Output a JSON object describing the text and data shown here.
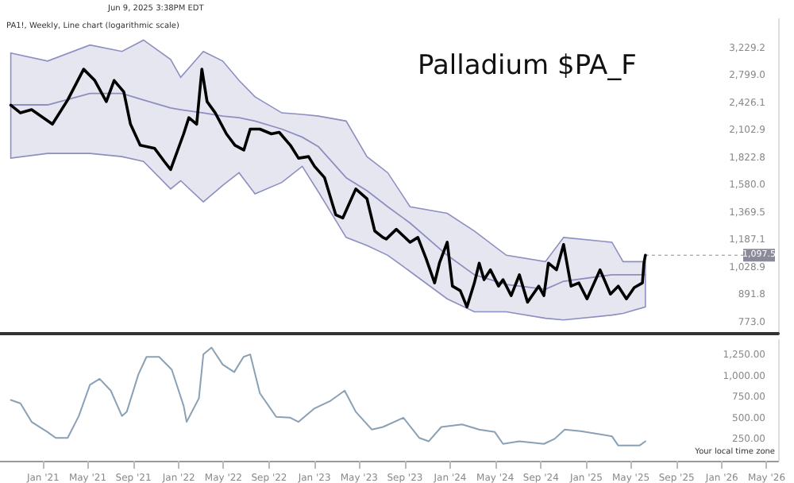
{
  "chart_data": [
    {
      "type": "line",
      "title": "Palladium $PA_F",
      "annotations": [
        "Jun 9, 2025 3:38PM EDT",
        "PA1!, Weekly, Line chart (logarithmic scale)",
        {
          "text": "1,097.5",
          "x": "2025-06-09",
          "y": 1097.5
        }
      ],
      "log": true,
      "tick_labels": "y",
      "xlim": [
        "2020-09-07",
        "2026-06-01"
      ],
      "ylim": [
        729,
        3759
      ],
      "yticks": [
        {
          "value": 773,
          "label": "773.0"
        },
        {
          "value": 891.8,
          "label": "891.8"
        },
        {
          "value": 1028.9,
          "label": "1,028.9"
        },
        {
          "value": 1187.1,
          "label": "1,187.1"
        },
        {
          "value": 1369.5,
          "label": "1,369.5"
        },
        {
          "value": 1580,
          "label": "1,580.0"
        },
        {
          "value": 1822.8,
          "label": "1,822.8"
        },
        {
          "value": 2102.9,
          "label": "2,102.9"
        },
        {
          "value": 2426.1,
          "label": "2,426.1"
        },
        {
          "value": 2799,
          "label": "2,799.0"
        },
        {
          "value": 3229.2,
          "label": "3,229.2"
        }
      ],
      "series": [
        {
          "color": "#8c8fc0",
          "x": [
            "2020-10-06",
            "2021-01-13",
            "2021-05-07",
            "2021-08-01",
            "2021-09-28",
            "2021-12-10",
            "2022-01-06",
            "2022-03-08",
            "2022-04-29",
            "2022-06-12",
            "2022-07-25",
            "2022-10-05",
            "2022-11-29",
            "2023-01-12",
            "2023-03-27",
            "2023-05-22",
            "2023-07-17",
            "2023-09-15",
            "2023-12-24",
            "2024-03-06",
            "2024-05-31",
            "2024-09-13",
            "2024-11-01",
            "2025-03-11",
            "2025-04-10",
            "2025-06-09"
          ],
          "values": [
            2403,
            2403,
            2551,
            2551,
            2465,
            2364,
            2344,
            2305,
            2267,
            2248,
            2209,
            2118,
            2031,
            1931,
            1644,
            1537,
            1413,
            1298,
            1097,
            991,
            942,
            919,
            958,
            991,
            991,
            991
          ],
          "upper": [
            3148,
            3020,
            3283,
            3175,
            3369,
            3046,
            2774,
            3175,
            3020,
            2729,
            2506,
            2305,
            2286,
            2267,
            2209,
            1835,
            1687,
            1413,
            1365,
            1245,
            1097,
            1061,
            1204,
            1174,
            1061,
            1061
          ],
          "lower": [
            1820,
            1866,
            1866,
            1835,
            1789,
            1550,
            1618,
            1449,
            1579,
            1687,
            1511,
            1604,
            1744,
            1524,
            1204,
            1154,
            1097,
            1008,
            874,
            817,
            817,
            790,
            783,
            803,
            810,
            838
          ]
        },
        {
          "color": "#000000",
          "x": [
            "2020-10-06",
            "2020-11-01",
            "2020-12-01",
            "2021-01-26",
            "2021-03-08",
            "2021-04-20",
            "2021-05-20",
            "2021-06-20",
            "2021-07-11",
            "2021-08-06",
            "2021-08-24",
            "2021-09-19",
            "2021-10-28",
            "2021-11-23",
            "2021-12-10",
            "2022-01-14",
            "2022-01-28",
            "2022-02-18",
            "2022-03-04",
            "2022-03-18",
            "2022-04-09",
            "2022-05-09",
            "2022-06-01",
            "2022-06-25",
            "2022-07-12",
            "2022-08-07",
            "2022-09-07",
            "2022-09-28",
            "2022-10-28",
            "2022-11-19",
            "2022-12-16",
            "2023-01-01",
            "2023-01-28",
            "2023-02-27",
            "2023-03-18",
            "2023-04-22",
            "2023-05-22",
            "2023-06-12",
            "2023-07-04",
            "2023-07-13",
            "2023-08-09",
            "2023-09-15",
            "2023-10-06",
            "2023-10-28",
            "2023-11-20",
            "2023-12-03",
            "2023-12-24",
            "2024-01-07",
            "2024-01-28",
            "2024-02-15",
            "2024-03-06",
            "2024-03-19",
            "2024-04-01",
            "2024-04-18",
            "2024-05-10",
            "2024-05-22",
            "2024-06-13",
            "2024-07-05",
            "2024-07-27",
            "2024-08-26",
            "2024-09-09",
            "2024-09-21",
            "2024-10-13",
            "2024-11-01",
            "2024-11-21",
            "2024-12-12",
            "2025-01-03",
            "2025-02-07",
            "2025-03-07",
            "2025-03-28",
            "2025-04-19",
            "2025-05-10",
            "2025-06-01",
            "2025-06-05",
            "2025-06-09"
          ],
          "values": [
            2400,
            2305,
            2344,
            2173,
            2465,
            2894,
            2729,
            2445,
            2729,
            2571,
            2173,
            1947,
            1915,
            1789,
            1715,
            2066,
            2248,
            2173,
            2894,
            2445,
            2305,
            2066,
            1947,
            1899,
            2118,
            2118,
            2066,
            2083,
            1947,
            1820,
            1835,
            1744,
            1644,
            1355,
            1332,
            1550,
            1474,
            1245,
            1204,
            1194,
            1256,
            1174,
            1204,
            1079,
            950,
            1053,
            1174,
            934,
            912,
            838,
            950,
            1053,
            966,
            1017,
            934,
            966,
            889,
            991,
            859,
            934,
            889,
            1053,
            1017,
            1160,
            934,
            950,
            874,
            1017,
            896,
            934,
            874,
            927,
            950,
            1053,
            1097.5
          ]
        }
      ]
    },
    {
      "type": "line",
      "annotations": [
        "Your local time zone"
      ],
      "xlim": [
        "2020-09-07",
        "2026-06-01"
      ],
      "xticks": [
        {
          "value": "2021-01-01",
          "label": "Jan '21"
        },
        {
          "value": "2021-05-01",
          "label": "May '21"
        },
        {
          "value": "2021-09-01",
          "label": "Sep '21"
        },
        {
          "value": "2022-01-01",
          "label": "Jan '22"
        },
        {
          "value": "2022-05-01",
          "label": "May '22"
        },
        {
          "value": "2022-09-01",
          "label": "Sep '22"
        },
        {
          "value": "2023-01-01",
          "label": "Jan '23"
        },
        {
          "value": "2023-05-01",
          "label": "May '23"
        },
        {
          "value": "2023-09-01",
          "label": "Sep '23"
        },
        {
          "value": "2024-01-01",
          "label": "Jan '24"
        },
        {
          "value": "2024-05-01",
          "label": "May '24"
        },
        {
          "value": "2024-09-01",
          "label": "Sep '24"
        },
        {
          "value": "2025-01-01",
          "label": "Jan '25"
        },
        {
          "value": "2025-05-01",
          "label": "May '25"
        },
        {
          "value": "2025-09-01",
          "label": "Sep '25"
        },
        {
          "value": "2026-01-01",
          "label": "Jan '26"
        },
        {
          "value": "2026-05-01",
          "label": "May '26"
        }
      ],
      "ylim": [
        0,
        1430
      ],
      "yticks": [
        {
          "value": 250,
          "label": "250.00"
        },
        {
          "value": 500,
          "label": "500.00"
        },
        {
          "value": 750,
          "label": "750.00"
        },
        {
          "value": 1000,
          "label": "1,000.00"
        },
        {
          "value": 1250,
          "label": "1,250.00"
        }
      ],
      "series": [
        {
          "color": "#8aa0b4",
          "x": [
            "2020-10-06",
            "2020-11-01",
            "2020-12-01",
            "2021-01-13",
            "2021-02-04",
            "2021-03-08",
            "2021-04-07",
            "2021-05-07",
            "2021-06-02",
            "2021-07-02",
            "2021-08-01",
            "2021-08-14",
            "2021-09-14",
            "2021-10-06",
            "2021-11-09",
            "2021-12-13",
            "2022-01-14",
            "2022-01-22",
            "2022-02-24",
            "2022-03-08",
            "2022-03-30",
            "2022-04-29",
            "2022-05-30",
            "2022-06-24",
            "2022-07-12",
            "2022-08-07",
            "2022-09-20",
            "2022-10-28",
            "2022-11-19",
            "2023-01-01",
            "2023-02-13",
            "2023-03-23",
            "2023-04-22",
            "2023-06-04",
            "2023-07-04",
            "2023-08-28",
            "2023-10-10",
            "2023-11-04",
            "2023-12-08",
            "2024-02-02",
            "2024-03-19",
            "2024-04-30",
            "2024-05-22",
            "2024-07-05",
            "2024-09-09",
            "2024-10-08",
            "2024-11-04",
            "2024-12-17",
            "2025-03-11",
            "2025-03-28",
            "2025-05-24",
            "2025-06-09"
          ],
          "values": [
            720,
            680,
            460,
            340,
            270,
            270,
            530,
            900,
            970,
            830,
            530,
            580,
            1020,
            1230,
            1230,
            1080,
            650,
            460,
            740,
            1260,
            1340,
            1140,
            1050,
            1230,
            1260,
            800,
            520,
            510,
            460,
            620,
            710,
            830,
            580,
            370,
            400,
            510,
            270,
            230,
            400,
            430,
            370,
            340,
            200,
            230,
            200,
            260,
            370,
            350,
            290,
            180,
            180,
            230
          ]
        }
      ]
    }
  ]
}
